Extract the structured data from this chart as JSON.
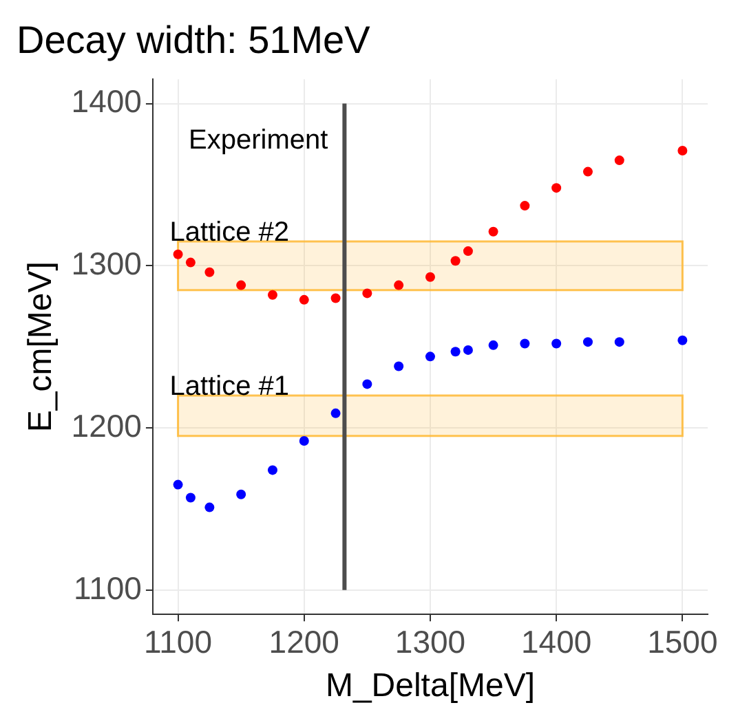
{
  "chart_data": {
    "type": "scatter",
    "title": "Decay width: 51MeV",
    "xlabel": "M_Delta[MeV]",
    "ylabel": "E_cm[MeV]",
    "x": [
      1100,
      1110,
      1125,
      1150,
      1175,
      1200,
      1225,
      1250,
      1275,
      1300,
      1320,
      1330,
      1350,
      1375,
      1400,
      1425,
      1450,
      1500
    ],
    "series": [
      {
        "color": "#ff0000",
        "values": [
          1307,
          1302,
          1296,
          1288,
          1282,
          1279,
          1280,
          1283,
          1288,
          1293,
          1303,
          1309,
          1321,
          1337,
          1348,
          1358,
          1365,
          1371
        ]
      },
      {
        "color": "#0000ff",
        "values": [
          1165,
          1157,
          1151,
          1159,
          1174,
          1192,
          1209,
          1227,
          1238,
          1244,
          1247,
          1248,
          1251,
          1252,
          1252,
          1253,
          1253,
          1254
        ]
      }
    ],
    "xlim": [
      1080,
      1520
    ],
    "ylim": [
      1085,
      1415
    ],
    "xticks": [
      1100,
      1200,
      1300,
      1400,
      1500
    ],
    "yticks": [
      1100,
      1200,
      1300,
      1400
    ],
    "ref_lines": [
      {
        "axis": "x",
        "value": 1232,
        "label": "Experiment",
        "color": "#4d4d4d"
      }
    ],
    "bands": [
      {
        "axis": "y",
        "from": 1285,
        "to": 1315,
        "label": "Lattice #2",
        "color": "#ffb833"
      },
      {
        "axis": "y",
        "from": 1195,
        "to": 1220,
        "label": "Lattice #1",
        "color": "#ffb833"
      }
    ],
    "grid": true,
    "legend": false,
    "marker": "circle"
  }
}
